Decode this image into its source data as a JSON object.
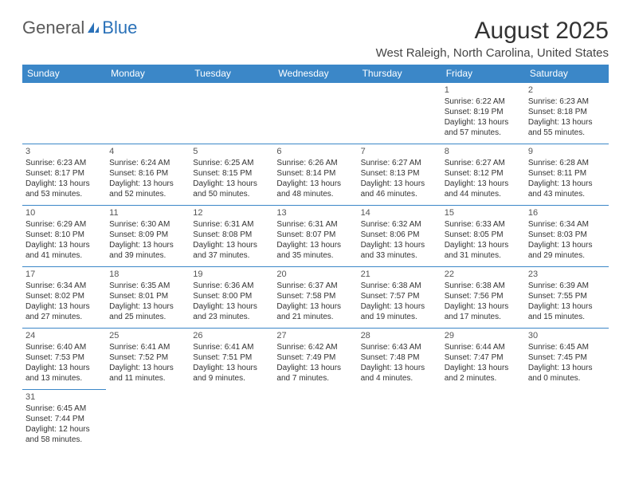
{
  "logo": {
    "part1": "General",
    "part2": "Blue"
  },
  "title": "August 2025",
  "subtitle": "West Raleigh, North Carolina, United States",
  "colors": {
    "header_bg": "#3b87c8",
    "header_text": "#ffffff",
    "border": "#3b87c8",
    "title_color": "#333333",
    "logo_gray": "#5a5a5a",
    "logo_blue": "#2a71b8"
  },
  "day_headers": [
    "Sunday",
    "Monday",
    "Tuesday",
    "Wednesday",
    "Thursday",
    "Friday",
    "Saturday"
  ],
  "weeks": [
    [
      null,
      null,
      null,
      null,
      null,
      {
        "n": "1",
        "sr": "Sunrise: 6:22 AM",
        "ss": "Sunset: 8:19 PM",
        "dl": "Daylight: 13 hours and 57 minutes."
      },
      {
        "n": "2",
        "sr": "Sunrise: 6:23 AM",
        "ss": "Sunset: 8:18 PM",
        "dl": "Daylight: 13 hours and 55 minutes."
      }
    ],
    [
      {
        "n": "3",
        "sr": "Sunrise: 6:23 AM",
        "ss": "Sunset: 8:17 PM",
        "dl": "Daylight: 13 hours and 53 minutes."
      },
      {
        "n": "4",
        "sr": "Sunrise: 6:24 AM",
        "ss": "Sunset: 8:16 PM",
        "dl": "Daylight: 13 hours and 52 minutes."
      },
      {
        "n": "5",
        "sr": "Sunrise: 6:25 AM",
        "ss": "Sunset: 8:15 PM",
        "dl": "Daylight: 13 hours and 50 minutes."
      },
      {
        "n": "6",
        "sr": "Sunrise: 6:26 AM",
        "ss": "Sunset: 8:14 PM",
        "dl": "Daylight: 13 hours and 48 minutes."
      },
      {
        "n": "7",
        "sr": "Sunrise: 6:27 AM",
        "ss": "Sunset: 8:13 PM",
        "dl": "Daylight: 13 hours and 46 minutes."
      },
      {
        "n": "8",
        "sr": "Sunrise: 6:27 AM",
        "ss": "Sunset: 8:12 PM",
        "dl": "Daylight: 13 hours and 44 minutes."
      },
      {
        "n": "9",
        "sr": "Sunrise: 6:28 AM",
        "ss": "Sunset: 8:11 PM",
        "dl": "Daylight: 13 hours and 43 minutes."
      }
    ],
    [
      {
        "n": "10",
        "sr": "Sunrise: 6:29 AM",
        "ss": "Sunset: 8:10 PM",
        "dl": "Daylight: 13 hours and 41 minutes."
      },
      {
        "n": "11",
        "sr": "Sunrise: 6:30 AM",
        "ss": "Sunset: 8:09 PM",
        "dl": "Daylight: 13 hours and 39 minutes."
      },
      {
        "n": "12",
        "sr": "Sunrise: 6:31 AM",
        "ss": "Sunset: 8:08 PM",
        "dl": "Daylight: 13 hours and 37 minutes."
      },
      {
        "n": "13",
        "sr": "Sunrise: 6:31 AM",
        "ss": "Sunset: 8:07 PM",
        "dl": "Daylight: 13 hours and 35 minutes."
      },
      {
        "n": "14",
        "sr": "Sunrise: 6:32 AM",
        "ss": "Sunset: 8:06 PM",
        "dl": "Daylight: 13 hours and 33 minutes."
      },
      {
        "n": "15",
        "sr": "Sunrise: 6:33 AM",
        "ss": "Sunset: 8:05 PM",
        "dl": "Daylight: 13 hours and 31 minutes."
      },
      {
        "n": "16",
        "sr": "Sunrise: 6:34 AM",
        "ss": "Sunset: 8:03 PM",
        "dl": "Daylight: 13 hours and 29 minutes."
      }
    ],
    [
      {
        "n": "17",
        "sr": "Sunrise: 6:34 AM",
        "ss": "Sunset: 8:02 PM",
        "dl": "Daylight: 13 hours and 27 minutes."
      },
      {
        "n": "18",
        "sr": "Sunrise: 6:35 AM",
        "ss": "Sunset: 8:01 PM",
        "dl": "Daylight: 13 hours and 25 minutes."
      },
      {
        "n": "19",
        "sr": "Sunrise: 6:36 AM",
        "ss": "Sunset: 8:00 PM",
        "dl": "Daylight: 13 hours and 23 minutes."
      },
      {
        "n": "20",
        "sr": "Sunrise: 6:37 AM",
        "ss": "Sunset: 7:58 PM",
        "dl": "Daylight: 13 hours and 21 minutes."
      },
      {
        "n": "21",
        "sr": "Sunrise: 6:38 AM",
        "ss": "Sunset: 7:57 PM",
        "dl": "Daylight: 13 hours and 19 minutes."
      },
      {
        "n": "22",
        "sr": "Sunrise: 6:38 AM",
        "ss": "Sunset: 7:56 PM",
        "dl": "Daylight: 13 hours and 17 minutes."
      },
      {
        "n": "23",
        "sr": "Sunrise: 6:39 AM",
        "ss": "Sunset: 7:55 PM",
        "dl": "Daylight: 13 hours and 15 minutes."
      }
    ],
    [
      {
        "n": "24",
        "sr": "Sunrise: 6:40 AM",
        "ss": "Sunset: 7:53 PM",
        "dl": "Daylight: 13 hours and 13 minutes."
      },
      {
        "n": "25",
        "sr": "Sunrise: 6:41 AM",
        "ss": "Sunset: 7:52 PM",
        "dl": "Daylight: 13 hours and 11 minutes."
      },
      {
        "n": "26",
        "sr": "Sunrise: 6:41 AM",
        "ss": "Sunset: 7:51 PM",
        "dl": "Daylight: 13 hours and 9 minutes."
      },
      {
        "n": "27",
        "sr": "Sunrise: 6:42 AM",
        "ss": "Sunset: 7:49 PM",
        "dl": "Daylight: 13 hours and 7 minutes."
      },
      {
        "n": "28",
        "sr": "Sunrise: 6:43 AM",
        "ss": "Sunset: 7:48 PM",
        "dl": "Daylight: 13 hours and 4 minutes."
      },
      {
        "n": "29",
        "sr": "Sunrise: 6:44 AM",
        "ss": "Sunset: 7:47 PM",
        "dl": "Daylight: 13 hours and 2 minutes."
      },
      {
        "n": "30",
        "sr": "Sunrise: 6:45 AM",
        "ss": "Sunset: 7:45 PM",
        "dl": "Daylight: 13 hours and 0 minutes."
      }
    ],
    [
      {
        "n": "31",
        "sr": "Sunrise: 6:45 AM",
        "ss": "Sunset: 7:44 PM",
        "dl": "Daylight: 12 hours and 58 minutes."
      },
      null,
      null,
      null,
      null,
      null,
      null
    ]
  ]
}
